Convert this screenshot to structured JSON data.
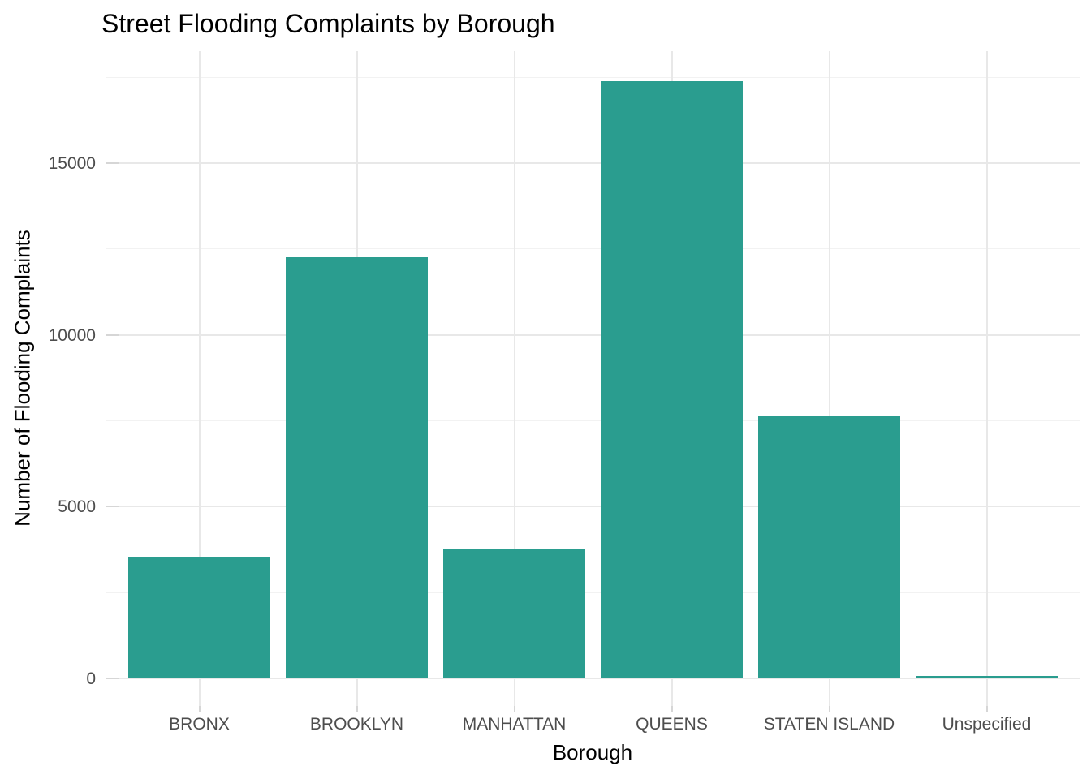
{
  "chart_data": {
    "type": "bar",
    "title": "Street Flooding Complaints by Borough",
    "xlabel": "Borough",
    "ylabel": "Number of Flooding Complaints",
    "categories": [
      "BRONX",
      "BROOKLYN",
      "MANHATTAN",
      "QUEENS",
      "STATEN ISLAND",
      "Unspecified"
    ],
    "values": [
      3520,
      12260,
      3760,
      17390,
      7630,
      75
    ],
    "y_ticks": [
      0,
      5000,
      10000,
      15000
    ],
    "y_minor_ticks": [
      2500,
      7500,
      12500,
      17500
    ],
    "ylim": [
      0,
      18260
    ],
    "grid": "major-and-minor",
    "legend_position": "none",
    "colors": {
      "bar_fill": "#2a9d8f",
      "grid_major": "#e8e8e8",
      "grid_minor": "#f2f2f2",
      "axis_tick": "#d6d6d6",
      "tick_label_text": "#4d4d4d",
      "axis_title_text": "#000000",
      "title_text": "#000000",
      "background": "#ffffff"
    }
  }
}
